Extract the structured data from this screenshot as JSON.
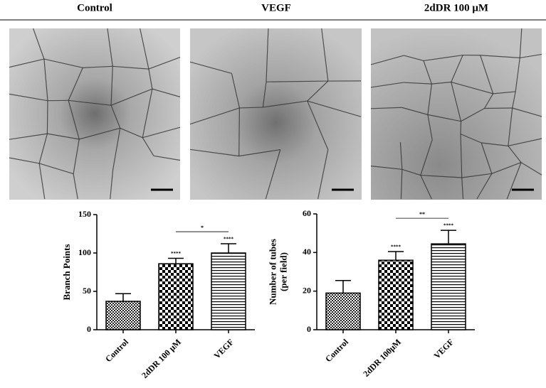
{
  "panels": [
    "Control",
    "VEGF",
    "2dDR 100 μM"
  ],
  "chart_data": [
    {
      "type": "bar",
      "ylabel": [
        "Branch Points"
      ],
      "categories": [
        "Control",
        "2dDR 100 μM",
        "VEGF"
      ],
      "values": [
        37,
        86,
        100
      ],
      "errors": [
        10,
        7,
        12
      ],
      "star_labels": [
        null,
        "****",
        "****"
      ],
      "comparison_label": "*",
      "ylim": [
        0,
        150
      ],
      "yticks": [
        0,
        50,
        100,
        150
      ],
      "color": "#000000"
    },
    {
      "type": "bar",
      "ylabel": [
        "Number of tubes",
        "(per field)"
      ],
      "categories": [
        "Control",
        "2dDR 100μM",
        "VEGF"
      ],
      "values": [
        19,
        36,
        44.5
      ],
      "errors": [
        6.5,
        4.5,
        7
      ],
      "star_labels": [
        null,
        "****",
        "****"
      ],
      "comparison_label": "**",
      "ylim": [
        0,
        60
      ],
      "yticks": [
        0,
        20,
        40,
        60
      ],
      "color": "#000000"
    }
  ]
}
